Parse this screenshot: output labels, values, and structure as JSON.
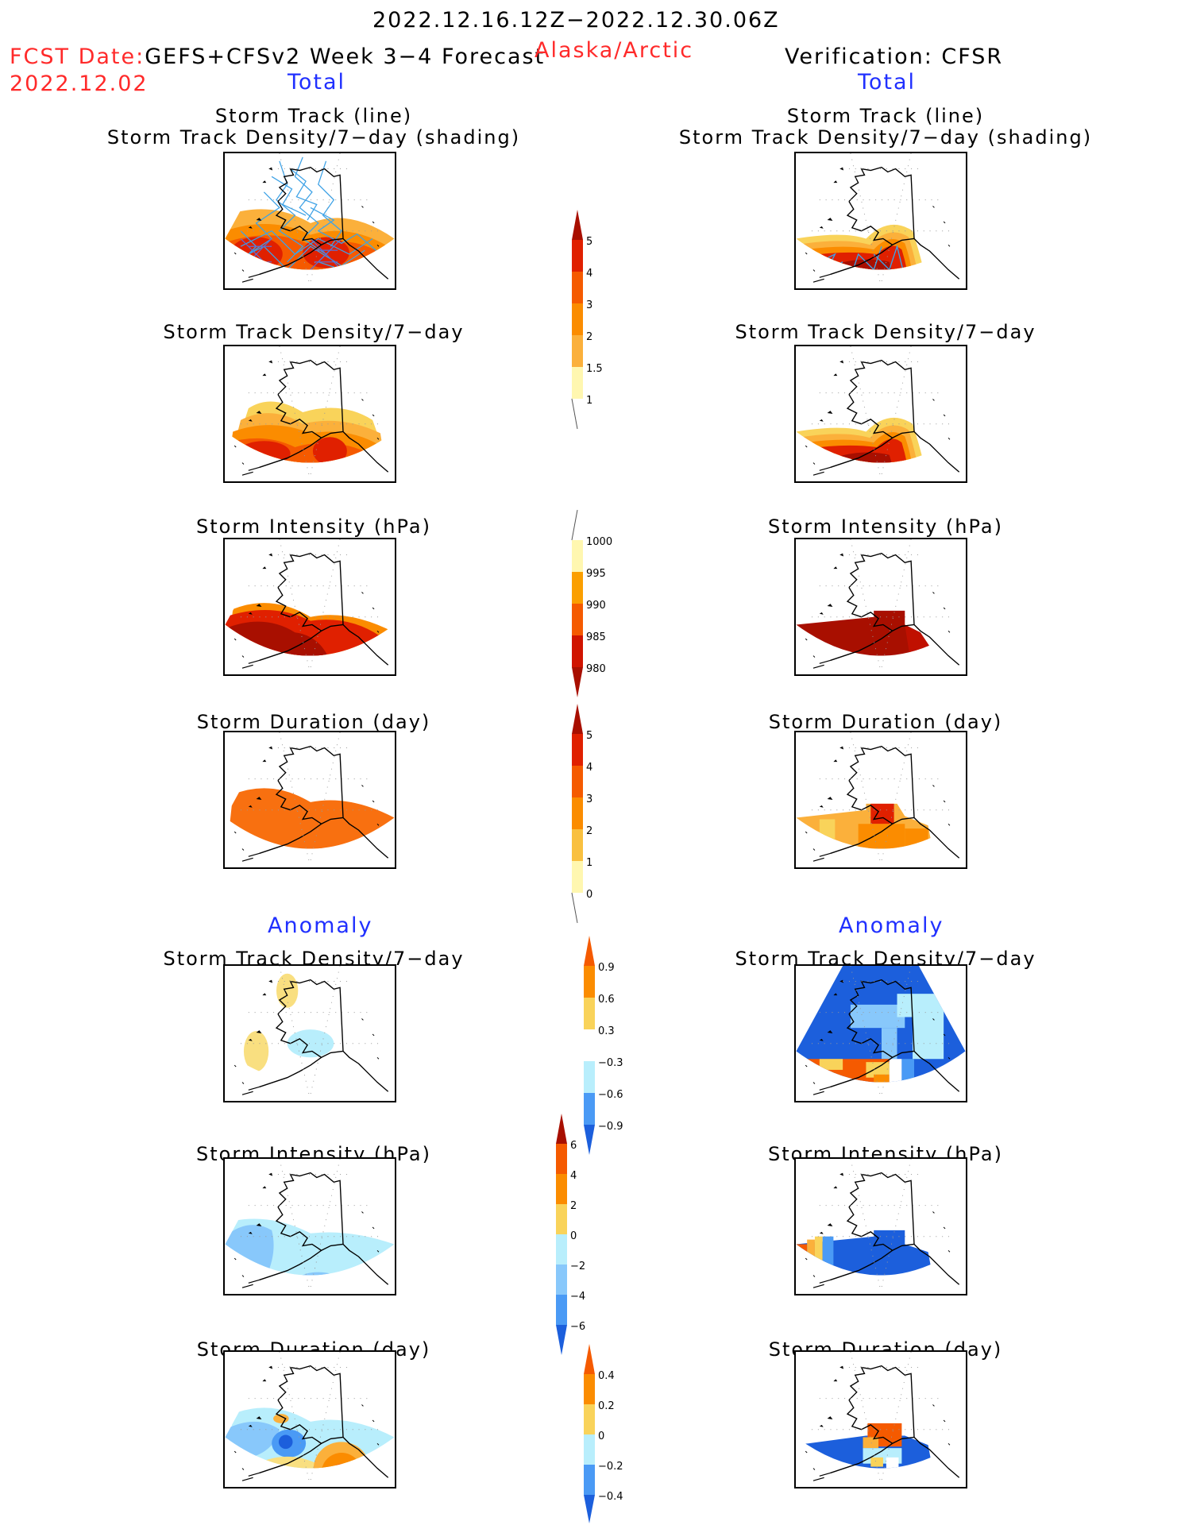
{
  "header": {
    "date_range": "2022.12.16.12Z−2022.12.30.06Z",
    "fcst_label": "FCST Date:",
    "fcst_model": "GEFS+CFSv2 Week 3−4 Forecast",
    "fcst_date": "2022.12.02",
    "region": "Alaska/Arctic",
    "verification": "Verification: CFSR"
  },
  "sections": {
    "total_left": "Total",
    "total_right": "Total",
    "anomaly_left": "Anomaly",
    "anomaly_right": "Anomaly"
  },
  "panel_titles": {
    "track_line": "Storm Track (line)",
    "track_density_shading": "Storm Track Density/7−day (shading)",
    "track_density": "Storm Track Density/7−day",
    "intensity": "Storm Intensity (hPa)",
    "duration": "Storm Duration (day)"
  },
  "colorbars": {
    "density_total": [
      "1",
      "1.5",
      "2",
      "3",
      "4",
      "5"
    ],
    "intensity_total": [
      "1000",
      "995",
      "990",
      "985",
      "980"
    ],
    "duration_total": [
      "0",
      "1",
      "2",
      "3",
      "4",
      "5"
    ],
    "density_anom": [
      "0.9",
      "0.6",
      "0.3",
      "−0.3",
      "−0.6",
      "−0.9"
    ],
    "intensity_anom": [
      "6",
      "4",
      "2",
      "0",
      "−2",
      "−4",
      "−6"
    ],
    "duration_anom": [
      "0.4",
      "0.2",
      "0",
      "−0.2",
      "−0.4"
    ]
  },
  "colors": {
    "yellow_pale": "#fff7b0",
    "yellow": "#f9d35a",
    "orange_light": "#fbb03b",
    "orange": "#fb8c00",
    "orange_dark": "#f55a00",
    "red": "#e02000",
    "dark_red": "#a80f00",
    "blue_pale": "#b8eefc",
    "blue_light": "#88c8fb",
    "blue": "#4a9af5",
    "blue_dark": "#1c5fdc",
    "track_blue": "#3ea2e6"
  }
}
